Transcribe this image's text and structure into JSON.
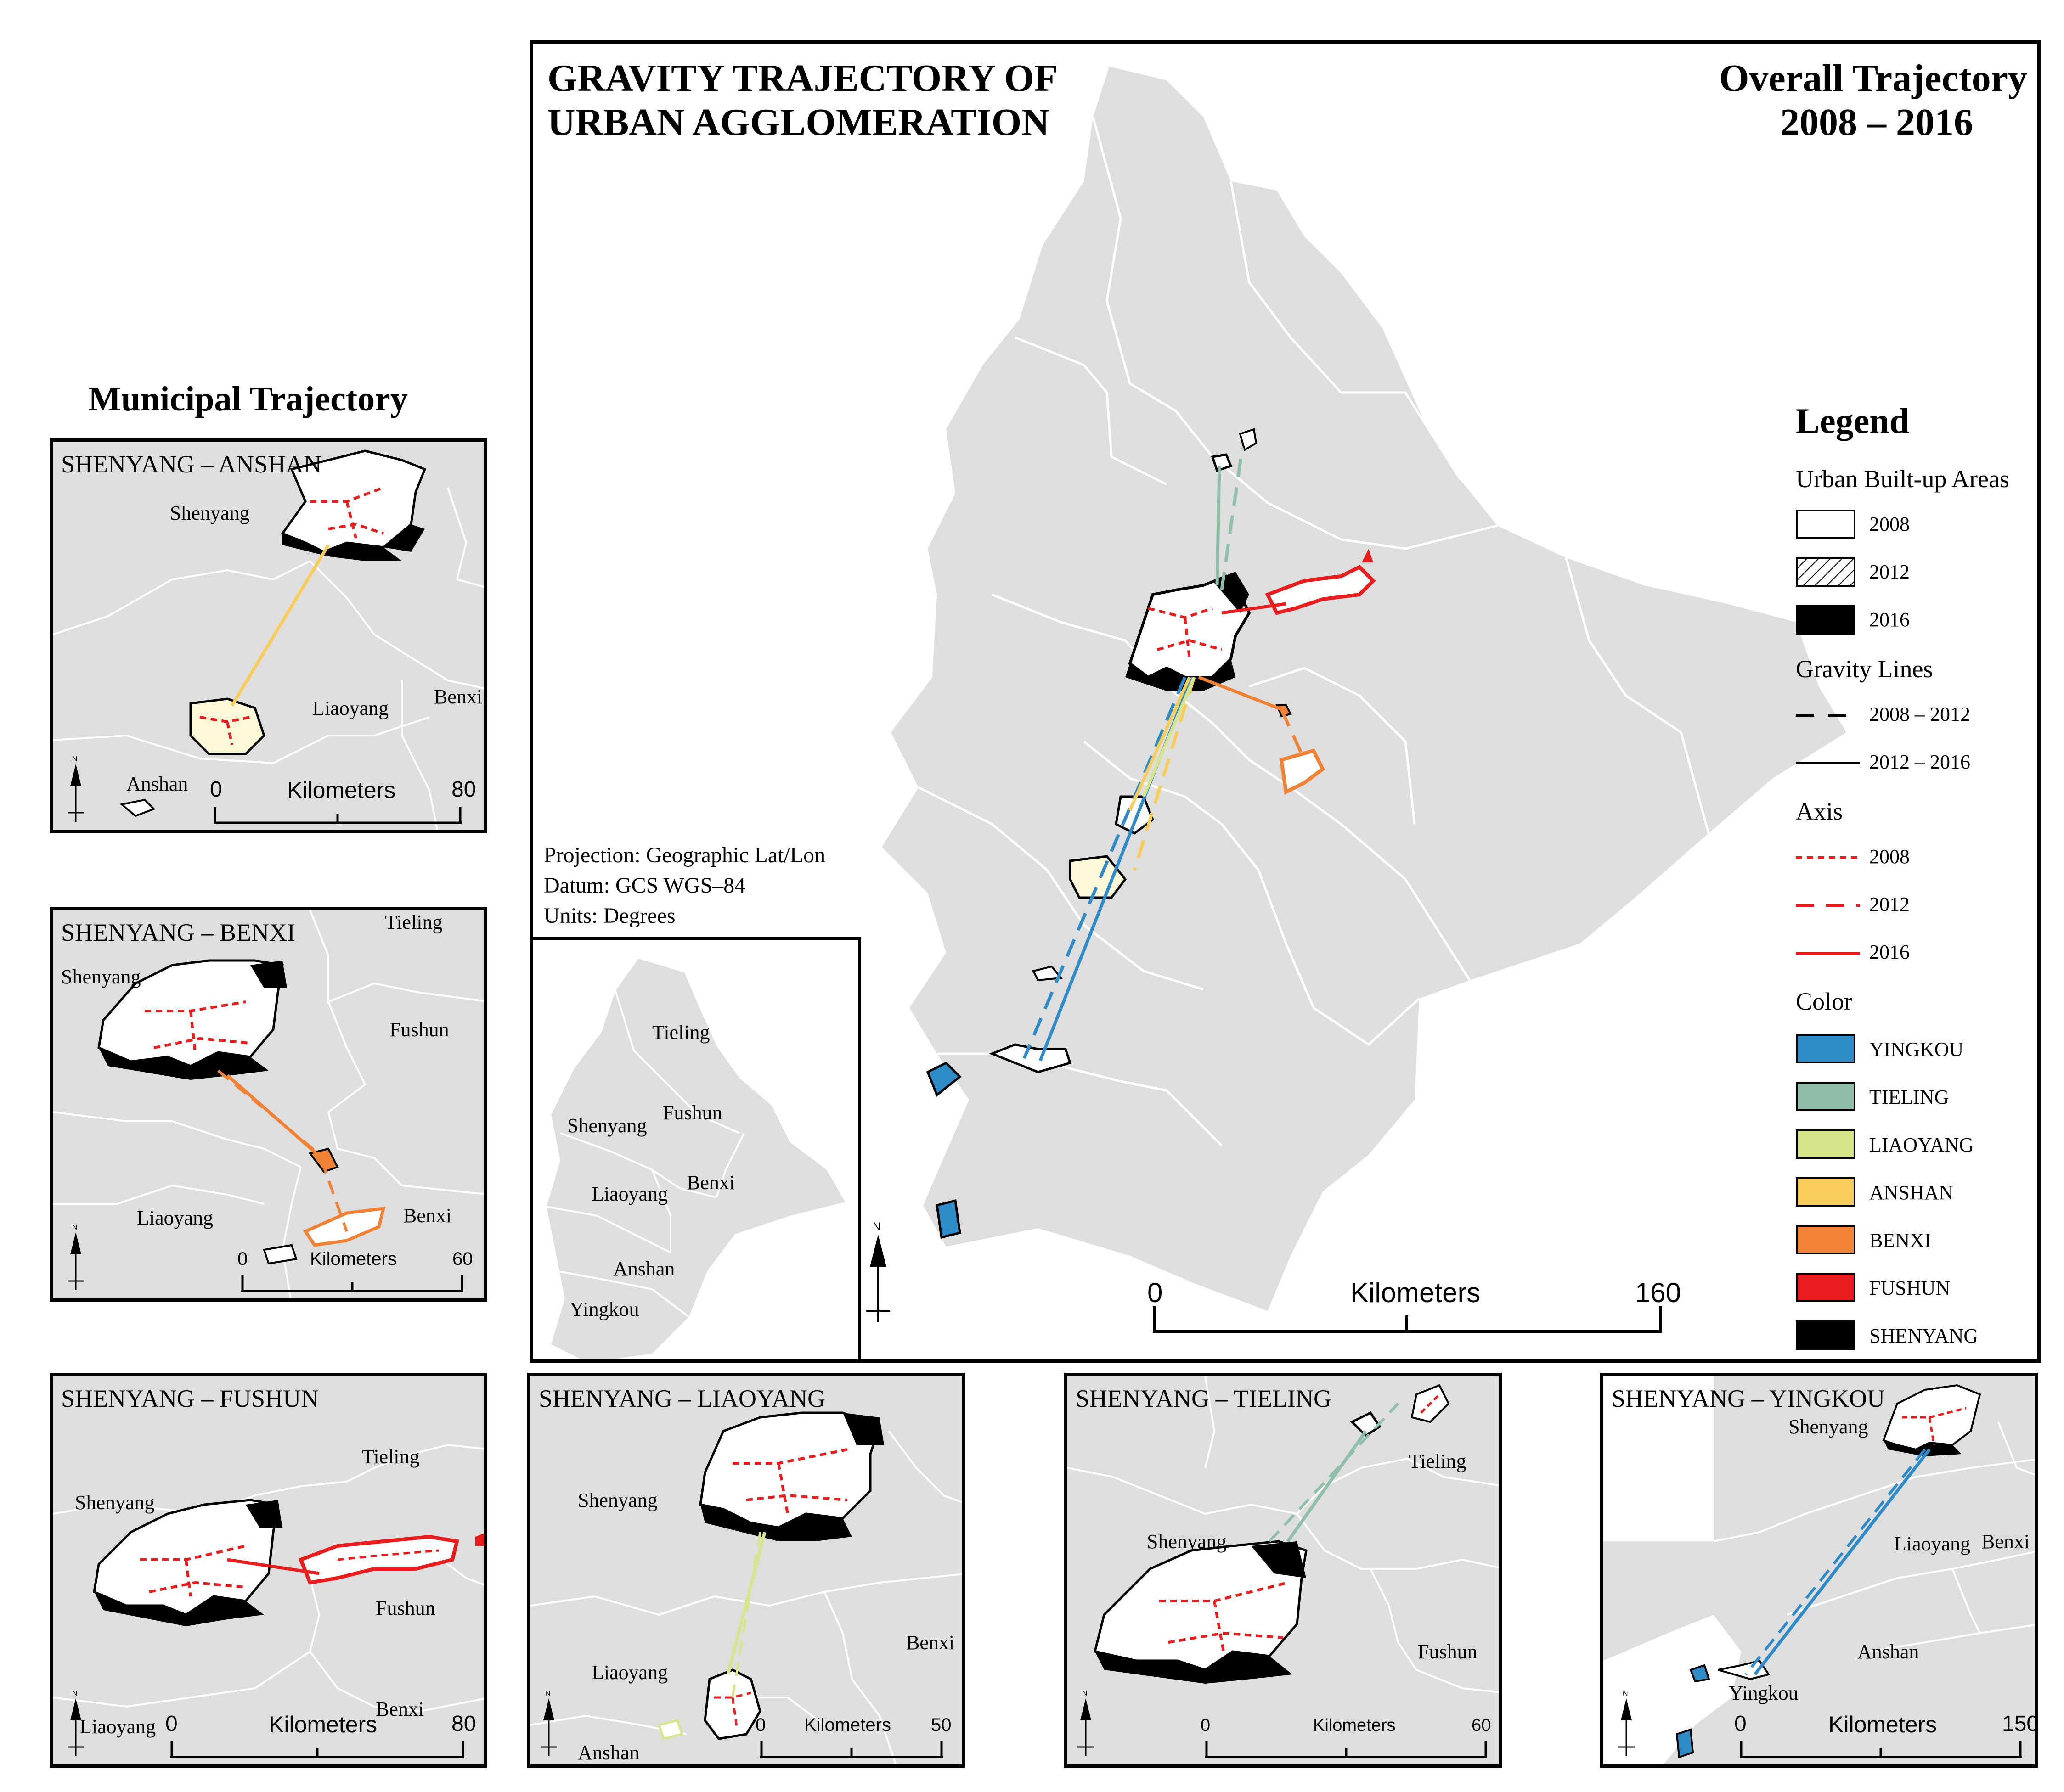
{
  "main": {
    "title_line1": "GRAVITY TRAJECTORY OF",
    "title_line2": "URBAN AGGLOMERATION",
    "overall_line1": "Overall Trajectory",
    "overall_line2": "2008 – 2016",
    "projection": "Projection: Geographic Lat/Lon",
    "datum": "Datum: GCS WGS–84",
    "units": "Units: Degrees",
    "scale": {
      "start": "0",
      "unit": "Kilometers",
      "end": "160"
    }
  },
  "inset": {
    "labels": [
      "Tieling",
      "Shenyang",
      "Fushun",
      "Liaoyang",
      "Benxi",
      "Anshan",
      "Yingkou"
    ]
  },
  "municipal_heading": "Municipal Trajectory",
  "legend": {
    "title": "Legend",
    "built_up_heading": "Urban Built-up Areas",
    "built_up": [
      "2008",
      "2012",
      "2016"
    ],
    "gravity_heading": "Gravity Lines",
    "gravity": [
      "2008 – 2012",
      "2012 – 2016"
    ],
    "axis_heading": "Axis",
    "axis": [
      "2008",
      "2012",
      "2016"
    ],
    "color_heading": "Color",
    "colors": [
      {
        "name": "YINGKOU",
        "hex": "#2e8bc7"
      },
      {
        "name": "TIELING",
        "hex": "#8fbfa8"
      },
      {
        "name": "LIAOYANG",
        "hex": "#d6e58a"
      },
      {
        "name": "ANSHAN",
        "hex": "#f7cc58"
      },
      {
        "name": "BENXI",
        "hex": "#f08236"
      },
      {
        "name": "FUSHUN",
        "hex": "#e81e1e"
      },
      {
        "name": "SHENYANG",
        "hex": "#000000"
      }
    ]
  },
  "panels": {
    "anshan": {
      "title": "SHENYANG – ANSHAN",
      "labels": [
        "Shenyang",
        "Liaoyang",
        "Benxi",
        "Anshan"
      ],
      "scale": {
        "start": "0",
        "unit": "Kilometers",
        "end": "80"
      }
    },
    "benxi": {
      "title": "SHENYANG – BENXI",
      "labels": [
        "Tieling",
        "Shenyang",
        "Fushun",
        "Liaoyang",
        "Benxi"
      ],
      "scale": {
        "start": "0",
        "unit": "Kilometers",
        "end": "60"
      }
    },
    "fushun": {
      "title": "SHENYANG – FUSHUN",
      "labels": [
        "Tieling",
        "Shenyang",
        "Fushun",
        "Benxi",
        "Liaoyang"
      ],
      "scale": {
        "start": "0",
        "unit": "Kilometers",
        "end": "80"
      }
    },
    "liaoyang": {
      "title": "SHENYANG – LIAOYANG",
      "labels": [
        "Shenyang",
        "Benxi",
        "Liaoyang",
        "Anshan"
      ],
      "scale": {
        "start": "0",
        "unit": "Kilometers",
        "end": "50"
      }
    },
    "tieling": {
      "title": "SHENYANG – TIELING",
      "labels": [
        "Tieling",
        "Shenyang",
        "Fushun"
      ],
      "scale": {
        "start": "0",
        "unit": "Kilometers",
        "end": "60"
      }
    },
    "yingkou": {
      "title": "SHENYANG – YINGKOU",
      "labels": [
        "Shenyang",
        "Liaoyang",
        "Benxi",
        "Anshan",
        "Yingkou"
      ],
      "scale": {
        "start": "0",
        "unit": "Kilometers",
        "end": "150"
      }
    }
  },
  "north_label": "N"
}
